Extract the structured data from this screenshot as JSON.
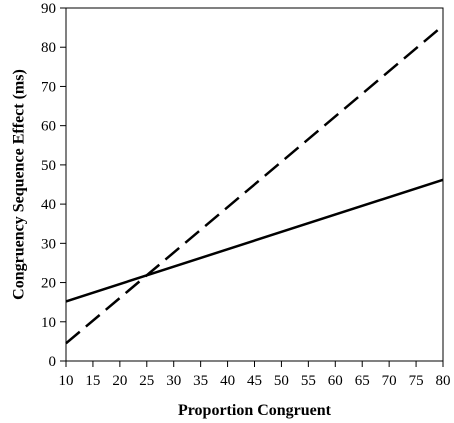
{
  "chart_data": {
    "type": "line",
    "title": "",
    "xlabel": "Proportion Congruent",
    "ylabel": "Congruency Sequence Effect (ms)",
    "xlim": [
      10,
      80
    ],
    "ylim": [
      0,
      90
    ],
    "xticks": [
      10,
      15,
      20,
      25,
      30,
      35,
      40,
      45,
      50,
      55,
      60,
      65,
      70,
      75,
      80
    ],
    "yticks": [
      0,
      10,
      20,
      30,
      40,
      50,
      60,
      70,
      80,
      90
    ],
    "grid": false,
    "legend": "none",
    "series": [
      {
        "style": "solid",
        "color": "#000000",
        "x": [
          10,
          80
        ],
        "y": [
          15.2,
          46.2
        ]
      },
      {
        "style": "dashed",
        "color": "#000000",
        "x": [
          10,
          80
        ],
        "y": [
          4.5,
          85.5
        ]
      }
    ]
  }
}
